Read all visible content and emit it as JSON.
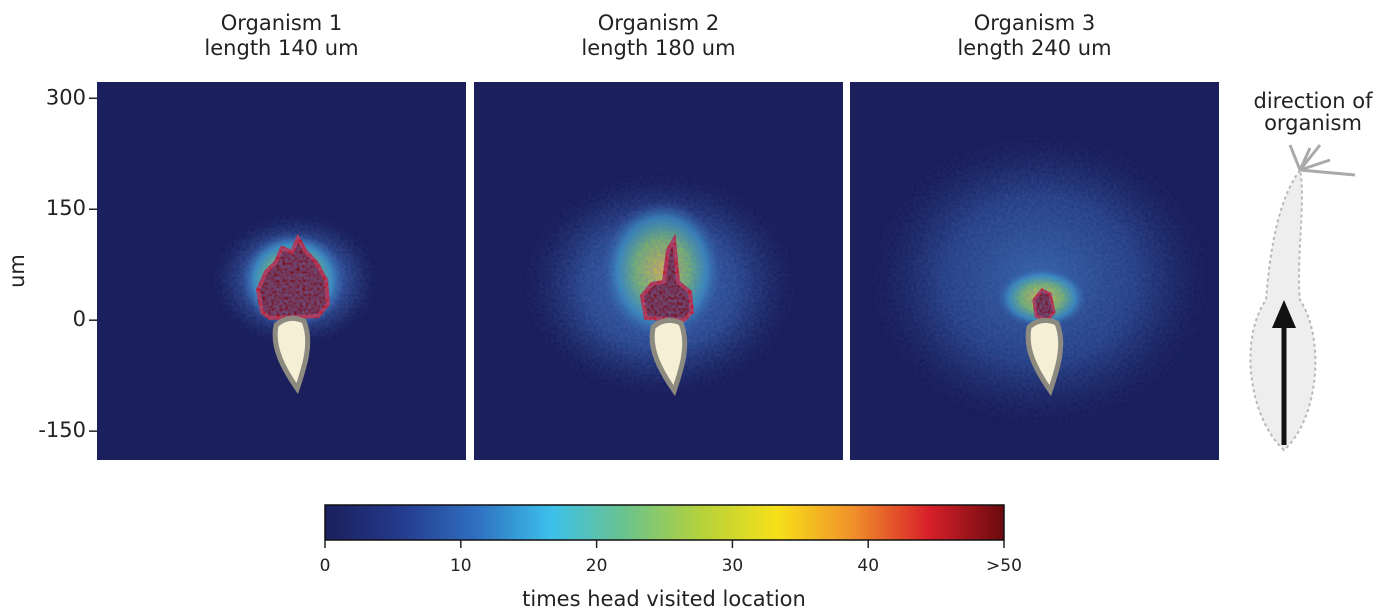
{
  "chart_data": {
    "type": "heatmap",
    "panels": [
      {
        "title": [
          "Organism 1",
          "length 140 um"
        ]
      },
      {
        "title": [
          "Organism 2",
          "length 180 um"
        ]
      },
      {
        "title": [
          "Organism 3",
          "length 240 um"
        ]
      }
    ],
    "ylabel": "um",
    "ylim": [
      -189,
      322
    ],
    "yticks": [
      300,
      150,
      0,
      -150
    ],
    "colorbar": {
      "label": "times head visited location",
      "lim": [
        0,
        50
      ],
      "ticks": [
        0,
        10,
        20,
        30,
        40,
        {
          "value": 50,
          "label": ">50"
        }
      ],
      "colors": [
        "#1b1f5c",
        "#243a8c",
        "#2f6fc0",
        "#3cc0ea",
        "#6cc38a",
        "#b6d23a",
        "#f7e01a",
        "#f0902a",
        "#d8202a",
        "#6a0a0e"
      ]
    },
    "side_note": [
      "direction of",
      "organism"
    ]
  }
}
